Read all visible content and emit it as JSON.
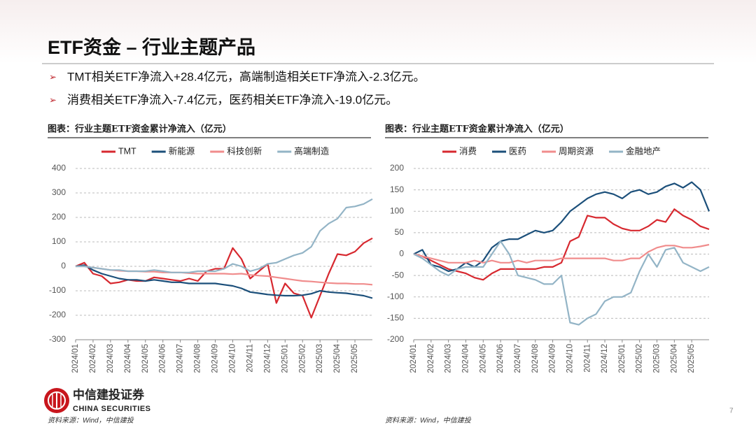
{
  "title": "ETF资金 – 行业主题产品",
  "bullets": [
    "TMT相关ETF净流入+28.4亿元，高端制造相关ETF净流入-2.3亿元。",
    "消费相关ETF净流入-7.4亿元，医药相关ETF净流入-19.0亿元。"
  ],
  "footer": {
    "company_cn": "中信建投证券",
    "company_en": "CHINA SECURITIES",
    "source": "资料来源：Wind，中信建投",
    "page": "7"
  },
  "chart_data": [
    {
      "type": "line",
      "title": "图表：行业主题ETF资金累计净流入（亿元）",
      "categories": [
        "2024/01",
        null,
        "2024/02",
        null,
        "2024/03",
        null,
        "2024/04",
        null,
        "2024/05",
        null,
        "2024/06",
        null,
        "2024/07",
        null,
        "2024/08",
        null,
        "2024/09",
        null,
        "2024/10",
        null,
        "2024/11",
        null,
        "2024/12",
        null,
        "2025/01",
        null,
        "2025/02",
        null,
        "2025/03",
        null,
        "2025/04",
        null,
        "2025/05",
        null,
        null
      ],
      "ylim": [
        -300,
        400
      ],
      "yticks": [
        -300,
        -200,
        -100,
        0,
        100,
        200,
        300,
        400
      ],
      "grid": true,
      "legend": "top",
      "series": [
        {
          "name": "TMT",
          "color": "#d7282f",
          "values": [
            0,
            15,
            -30,
            -40,
            -70,
            -65,
            -55,
            -60,
            -60,
            -45,
            -50,
            -55,
            -60,
            -50,
            -60,
            -20,
            -10,
            -10,
            75,
            30,
            -50,
            -20,
            10,
            -150,
            -70,
            -110,
            -120,
            -210,
            -120,
            -30,
            50,
            45,
            60,
            95,
            115
          ]
        },
        {
          "name": "新能源",
          "color": "#1b4f7a",
          "values": [
            0,
            5,
            -15,
            -30,
            -40,
            -50,
            -55,
            -55,
            -60,
            -55,
            -60,
            -65,
            -65,
            -70,
            -70,
            -70,
            -70,
            -75,
            -80,
            -90,
            -105,
            -110,
            -115,
            -118,
            -120,
            -120,
            -118,
            -112,
            -100,
            -105,
            -108,
            -110,
            -115,
            -120,
            -130
          ]
        },
        {
          "name": "科技创新",
          "color": "#f08c8c",
          "values": [
            0,
            0,
            -5,
            -10,
            -15,
            -18,
            -20,
            -20,
            -22,
            -22,
            -25,
            -25,
            -25,
            -28,
            -30,
            -30,
            -30,
            -30,
            -32,
            -30,
            -35,
            -38,
            -40,
            -45,
            -50,
            -55,
            -60,
            -62,
            -65,
            -68,
            -70,
            -70,
            -72,
            -72,
            -75
          ]
        },
        {
          "name": "高端制造",
          "color": "#93b4c6",
          "values": [
            0,
            0,
            -5,
            -10,
            -15,
            -15,
            -20,
            -20,
            -20,
            -15,
            -20,
            -25,
            -25,
            -25,
            -20,
            -20,
            -20,
            -10,
            10,
            0,
            -20,
            -10,
            10,
            15,
            30,
            45,
            55,
            80,
            145,
            175,
            195,
            240,
            245,
            255,
            275
          ]
        }
      ]
    },
    {
      "type": "line",
      "title": "图表：行业主题ETF资金累计净流入（亿元）",
      "categories": [
        "2024/01",
        null,
        "2024/02",
        null,
        "2024/03",
        null,
        "2024/04",
        null,
        "2024/05",
        null,
        "2024/06",
        null,
        "2024/07",
        null,
        "2024/08",
        null,
        "2024/09",
        null,
        "2024/10",
        null,
        "2024/11",
        null,
        "2024/12",
        null,
        "2025/01",
        null,
        "2025/02",
        null,
        "2025/03",
        null,
        "2025/04",
        null,
        "2025/05",
        null,
        null
      ],
      "ylim": [
        -200,
        200
      ],
      "yticks": [
        -200,
        -150,
        -100,
        -50,
        0,
        50,
        100,
        150,
        200
      ],
      "grid": true,
      "legend": "top",
      "series": [
        {
          "name": "消费",
          "color": "#d7282f",
          "values": [
            0,
            -5,
            -15,
            -25,
            -35,
            -40,
            -45,
            -55,
            -60,
            -45,
            -35,
            -35,
            -35,
            -35,
            -35,
            -30,
            -30,
            -20,
            30,
            40,
            90,
            85,
            85,
            70,
            60,
            55,
            55,
            65,
            80,
            75,
            105,
            90,
            80,
            65,
            58
          ]
        },
        {
          "name": "医药",
          "color": "#1b4f7a",
          "values": [
            0,
            10,
            -25,
            -30,
            -40,
            -35,
            -20,
            -30,
            -15,
            15,
            30,
            35,
            35,
            45,
            55,
            50,
            55,
            75,
            100,
            115,
            130,
            140,
            145,
            140,
            130,
            145,
            150,
            140,
            145,
            158,
            165,
            155,
            168,
            150,
            100
          ]
        },
        {
          "name": "周期资源",
          "color": "#f08c8c",
          "values": [
            0,
            -5,
            -10,
            -15,
            -20,
            -20,
            -20,
            -15,
            -20,
            -15,
            -20,
            -20,
            -15,
            -20,
            -15,
            -15,
            -15,
            -10,
            -10,
            -10,
            -10,
            -10,
            -10,
            -15,
            -15,
            -10,
            -10,
            5,
            15,
            20,
            20,
            15,
            15,
            18,
            22
          ]
        },
        {
          "name": "金融地产",
          "color": "#93b4c6",
          "values": [
            0,
            -10,
            -25,
            -40,
            -50,
            -35,
            -30,
            -30,
            -30,
            0,
            30,
            0,
            -50,
            -55,
            -60,
            -70,
            -70,
            -50,
            -160,
            -165,
            -150,
            -140,
            -110,
            -100,
            -100,
            -90,
            -40,
            0,
            -30,
            10,
            15,
            -20,
            -30,
            -40,
            -30
          ]
        }
      ]
    }
  ]
}
